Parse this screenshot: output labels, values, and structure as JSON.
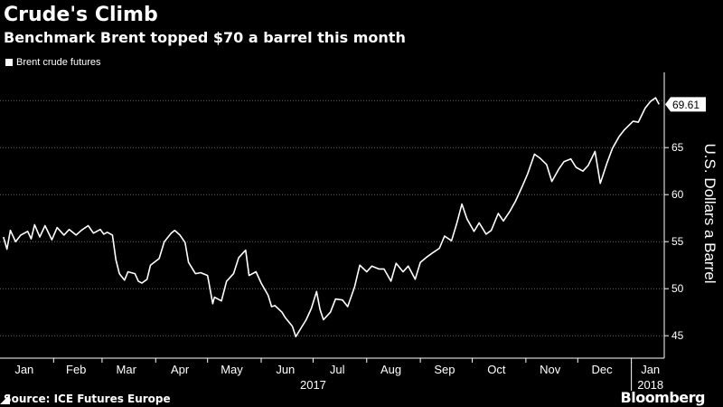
{
  "title": "Crude's Climb",
  "subtitle": "Benchmark Brent topped $70 a barrel this month",
  "source": "Source: ICE Futures Europe",
  "brand": "Bloomberg",
  "colors": {
    "background": "#000000",
    "line": "#ffffff",
    "grid": "#666666",
    "text": "#ffffff"
  },
  "chart_data": {
    "type": "line",
    "series": [
      {
        "name": "Brent crude futures",
        "points": [
          [
            "2017-01-03",
            55.5
          ],
          [
            "2017-01-05",
            54.2
          ],
          [
            "2017-01-07",
            56.2
          ],
          [
            "2017-01-10",
            55.0
          ],
          [
            "2017-01-13",
            55.7
          ],
          [
            "2017-01-17",
            56.1
          ],
          [
            "2017-01-19",
            55.3
          ],
          [
            "2017-01-21",
            56.8
          ],
          [
            "2017-01-24",
            55.5
          ],
          [
            "2017-01-27",
            56.7
          ],
          [
            "2017-01-31",
            55.2
          ],
          [
            "2017-02-03",
            56.5
          ],
          [
            "2017-02-07",
            55.7
          ],
          [
            "2017-02-10",
            56.3
          ],
          [
            "2017-02-14",
            55.7
          ],
          [
            "2017-02-17",
            56.2
          ],
          [
            "2017-02-21",
            56.7
          ],
          [
            "2017-02-24",
            55.9
          ],
          [
            "2017-02-28",
            56.3
          ],
          [
            "2017-03-02",
            55.8
          ],
          [
            "2017-03-04",
            56.0
          ],
          [
            "2017-03-07",
            55.7
          ],
          [
            "2017-03-09",
            53.1
          ],
          [
            "2017-03-11",
            51.6
          ],
          [
            "2017-03-14",
            50.9
          ],
          [
            "2017-03-16",
            51.8
          ],
          [
            "2017-03-20",
            51.6
          ],
          [
            "2017-03-22",
            50.8
          ],
          [
            "2017-03-24",
            50.6
          ],
          [
            "2017-03-27",
            51.0
          ],
          [
            "2017-03-29",
            52.5
          ],
          [
            "2017-04-03",
            53.2
          ],
          [
            "2017-04-06",
            55.0
          ],
          [
            "2017-04-10",
            55.9
          ],
          [
            "2017-04-12",
            56.2
          ],
          [
            "2017-04-15",
            55.7
          ],
          [
            "2017-04-18",
            54.9
          ],
          [
            "2017-04-20",
            52.8
          ],
          [
            "2017-04-24",
            51.6
          ],
          [
            "2017-04-27",
            51.7
          ],
          [
            "2017-05-01",
            51.4
          ],
          [
            "2017-05-04",
            48.4
          ],
          [
            "2017-05-05",
            49.1
          ],
          [
            "2017-05-09",
            48.7
          ],
          [
            "2017-05-12",
            50.8
          ],
          [
            "2017-05-16",
            51.6
          ],
          [
            "2017-05-19",
            53.3
          ],
          [
            "2017-05-23",
            54.1
          ],
          [
            "2017-05-25",
            51.4
          ],
          [
            "2017-05-29",
            51.8
          ],
          [
            "2017-06-01",
            50.6
          ],
          [
            "2017-06-05",
            49.3
          ],
          [
            "2017-06-07",
            48.1
          ],
          [
            "2017-06-09",
            48.2
          ],
          [
            "2017-06-13",
            47.5
          ],
          [
            "2017-06-15",
            46.9
          ],
          [
            "2017-06-19",
            46.0
          ],
          [
            "2017-06-21",
            44.9
          ],
          [
            "2017-06-23",
            45.5
          ],
          [
            "2017-06-27",
            46.7
          ],
          [
            "2017-06-30",
            47.9
          ],
          [
            "2017-07-03",
            49.7
          ],
          [
            "2017-07-05",
            47.8
          ],
          [
            "2017-07-07",
            46.7
          ],
          [
            "2017-07-11",
            47.5
          ],
          [
            "2017-07-14",
            48.9
          ],
          [
            "2017-07-18",
            48.8
          ],
          [
            "2017-07-21",
            48.1
          ],
          [
            "2017-07-25",
            50.2
          ],
          [
            "2017-07-28",
            52.5
          ],
          [
            "2017-08-01",
            51.8
          ],
          [
            "2017-08-04",
            52.4
          ],
          [
            "2017-08-08",
            52.1
          ],
          [
            "2017-08-11",
            52.1
          ],
          [
            "2017-08-15",
            50.8
          ],
          [
            "2017-08-18",
            52.7
          ],
          [
            "2017-08-22",
            51.8
          ],
          [
            "2017-08-25",
            52.4
          ],
          [
            "2017-08-29",
            51.0
          ],
          [
            "2017-09-01",
            52.8
          ],
          [
            "2017-09-05",
            53.4
          ],
          [
            "2017-09-08",
            53.8
          ],
          [
            "2017-09-12",
            54.3
          ],
          [
            "2017-09-15",
            55.6
          ],
          [
            "2017-09-19",
            55.1
          ],
          [
            "2017-09-22",
            56.9
          ],
          [
            "2017-09-25",
            59.0
          ],
          [
            "2017-09-28",
            57.4
          ],
          [
            "2017-10-02",
            56.1
          ],
          [
            "2017-10-05",
            57.0
          ],
          [
            "2017-10-09",
            55.8
          ],
          [
            "2017-10-12",
            56.2
          ],
          [
            "2017-10-16",
            58.0
          ],
          [
            "2017-10-19",
            57.2
          ],
          [
            "2017-10-23",
            58.3
          ],
          [
            "2017-10-26",
            59.3
          ],
          [
            "2017-10-30",
            60.9
          ],
          [
            "2017-11-02",
            62.2
          ],
          [
            "2017-11-06",
            64.3
          ],
          [
            "2017-11-09",
            63.9
          ],
          [
            "2017-11-13",
            63.2
          ],
          [
            "2017-11-16",
            61.4
          ],
          [
            "2017-11-20",
            62.7
          ],
          [
            "2017-11-23",
            63.5
          ],
          [
            "2017-11-27",
            63.8
          ],
          [
            "2017-11-30",
            62.9
          ],
          [
            "2017-12-04",
            62.5
          ],
          [
            "2017-12-07",
            63.1
          ],
          [
            "2017-12-11",
            64.6
          ],
          [
            "2017-12-14",
            61.2
          ],
          [
            "2017-12-18",
            63.4
          ],
          [
            "2017-12-21",
            64.9
          ],
          [
            "2017-12-25",
            66.2
          ],
          [
            "2017-12-28",
            66.9
          ],
          [
            "2018-01-02",
            67.8
          ],
          [
            "2018-01-05",
            67.7
          ],
          [
            "2018-01-09",
            69.2
          ],
          [
            "2018-01-12",
            69.9
          ],
          [
            "2018-01-15",
            70.3
          ],
          [
            "2018-01-17",
            69.6
          ]
        ]
      }
    ],
    "last_value_label": "69.61",
    "ylabel": "U.S. Dollars a Barrel",
    "y_ticks": [
      45,
      50,
      55,
      60,
      65
    ],
    "ylim": [
      43,
      73
    ],
    "xlim": [
      "2017-01-01",
      "2018-01-20"
    ],
    "x_ticks": [
      {
        "label": "Jan",
        "date": "2017-01-15"
      },
      {
        "label": "Feb",
        "date": "2017-02-14"
      },
      {
        "label": "Mar",
        "date": "2017-03-15"
      },
      {
        "label": "Apr",
        "date": "2017-04-15"
      },
      {
        "label": "May",
        "date": "2017-05-15"
      },
      {
        "label": "Jun",
        "date": "2017-06-15"
      },
      {
        "label": "Jul",
        "date": "2017-07-15"
      },
      {
        "label": "Aug",
        "date": "2017-08-15"
      },
      {
        "label": "Sep",
        "date": "2017-09-15"
      },
      {
        "label": "Oct",
        "date": "2017-10-15"
      },
      {
        "label": "Nov",
        "date": "2017-11-15"
      },
      {
        "label": "Dec",
        "date": "2017-12-15"
      },
      {
        "label": "Jan",
        "date": "2018-01-12"
      }
    ],
    "year_labels": [
      {
        "label": "2017",
        "date": "2017-07-01"
      },
      {
        "label": "2018",
        "date": "2018-01-12"
      }
    ],
    "year_divider": "2018-01-01",
    "grid": true,
    "legend": "top-left"
  }
}
